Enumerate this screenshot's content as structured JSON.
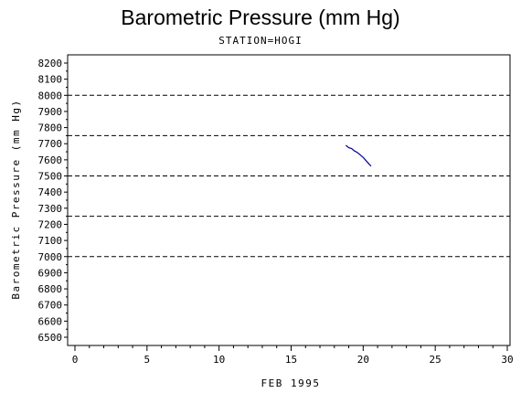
{
  "chart_data": {
    "type": "line",
    "title": "Barometric Pressure (mm Hg)",
    "subtitle": "STATION=HOGI",
    "xlabel": "FEB 1995",
    "ylabel": "Barometric Pressure (mm Hg)",
    "xlim": [
      0,
      30
    ],
    "ylim": [
      6500,
      8200
    ],
    "x_ticks": [
      0,
      5,
      10,
      15,
      20,
      25,
      30
    ],
    "y_ticks": [
      6500,
      6600,
      6700,
      6800,
      6900,
      7000,
      7100,
      7200,
      7300,
      7400,
      7500,
      7600,
      7700,
      7800,
      7900,
      8000,
      8100,
      8200
    ],
    "reference_lines": [
      7000,
      7250,
      7500,
      7750,
      8000
    ],
    "series": [
      {
        "color": "#000099",
        "x": [
          18.8,
          19.0,
          19.2,
          19.4,
          19.6,
          19.8,
          20.0,
          20.2,
          20.4,
          20.55
        ],
        "y": [
          7690,
          7675,
          7670,
          7655,
          7645,
          7630,
          7615,
          7595,
          7575,
          7560
        ]
      }
    ]
  }
}
